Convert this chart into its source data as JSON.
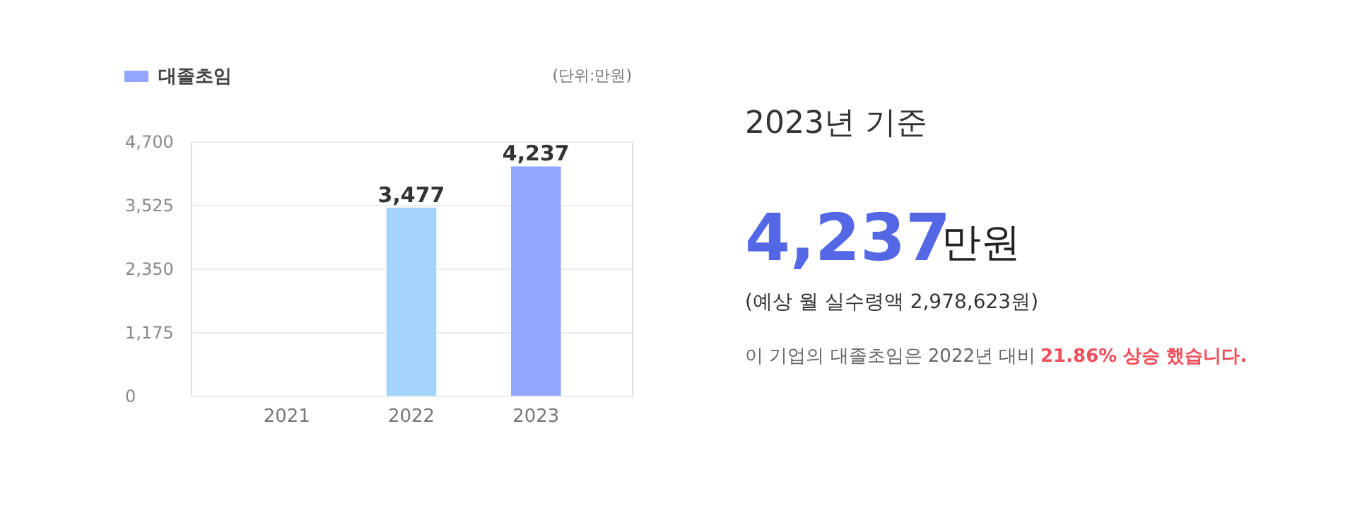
{
  "chart_data": {
    "type": "bar",
    "ylabel": "(단위:만원)",
    "categories": [
      "2021",
      "2022",
      "2023"
    ],
    "series": [
      {
        "name": "대졸초임",
        "color": "#93a5fd",
        "colors": [
          "#93a5fd",
          "#a3d4fc",
          "#93a5fd"
        ],
        "values": [
          null,
          3477,
          4237
        ],
        "value_labels": [
          null,
          "3,477",
          "4,237"
        ]
      }
    ],
    "ylim": [
      0,
      4700
    ],
    "yticks": [
      0,
      {
        "value": 1175,
        "label": "1,175"
      },
      {
        "value": 2350,
        "label": "2,350"
      },
      {
        "value": 3525,
        "label": "3,525"
      },
      {
        "value": 4700,
        "label": "4,700"
      }
    ],
    "grid": "y",
    "legend": "top left",
    "annotations": [
      "2023년 기준",
      "4,237",
      "만원",
      "(예상 월 실수령액 2,978,623원)",
      "이 기업의 대졸초임은 2022년 대비",
      "21.86% 상승 했습니다."
    ]
  }
}
